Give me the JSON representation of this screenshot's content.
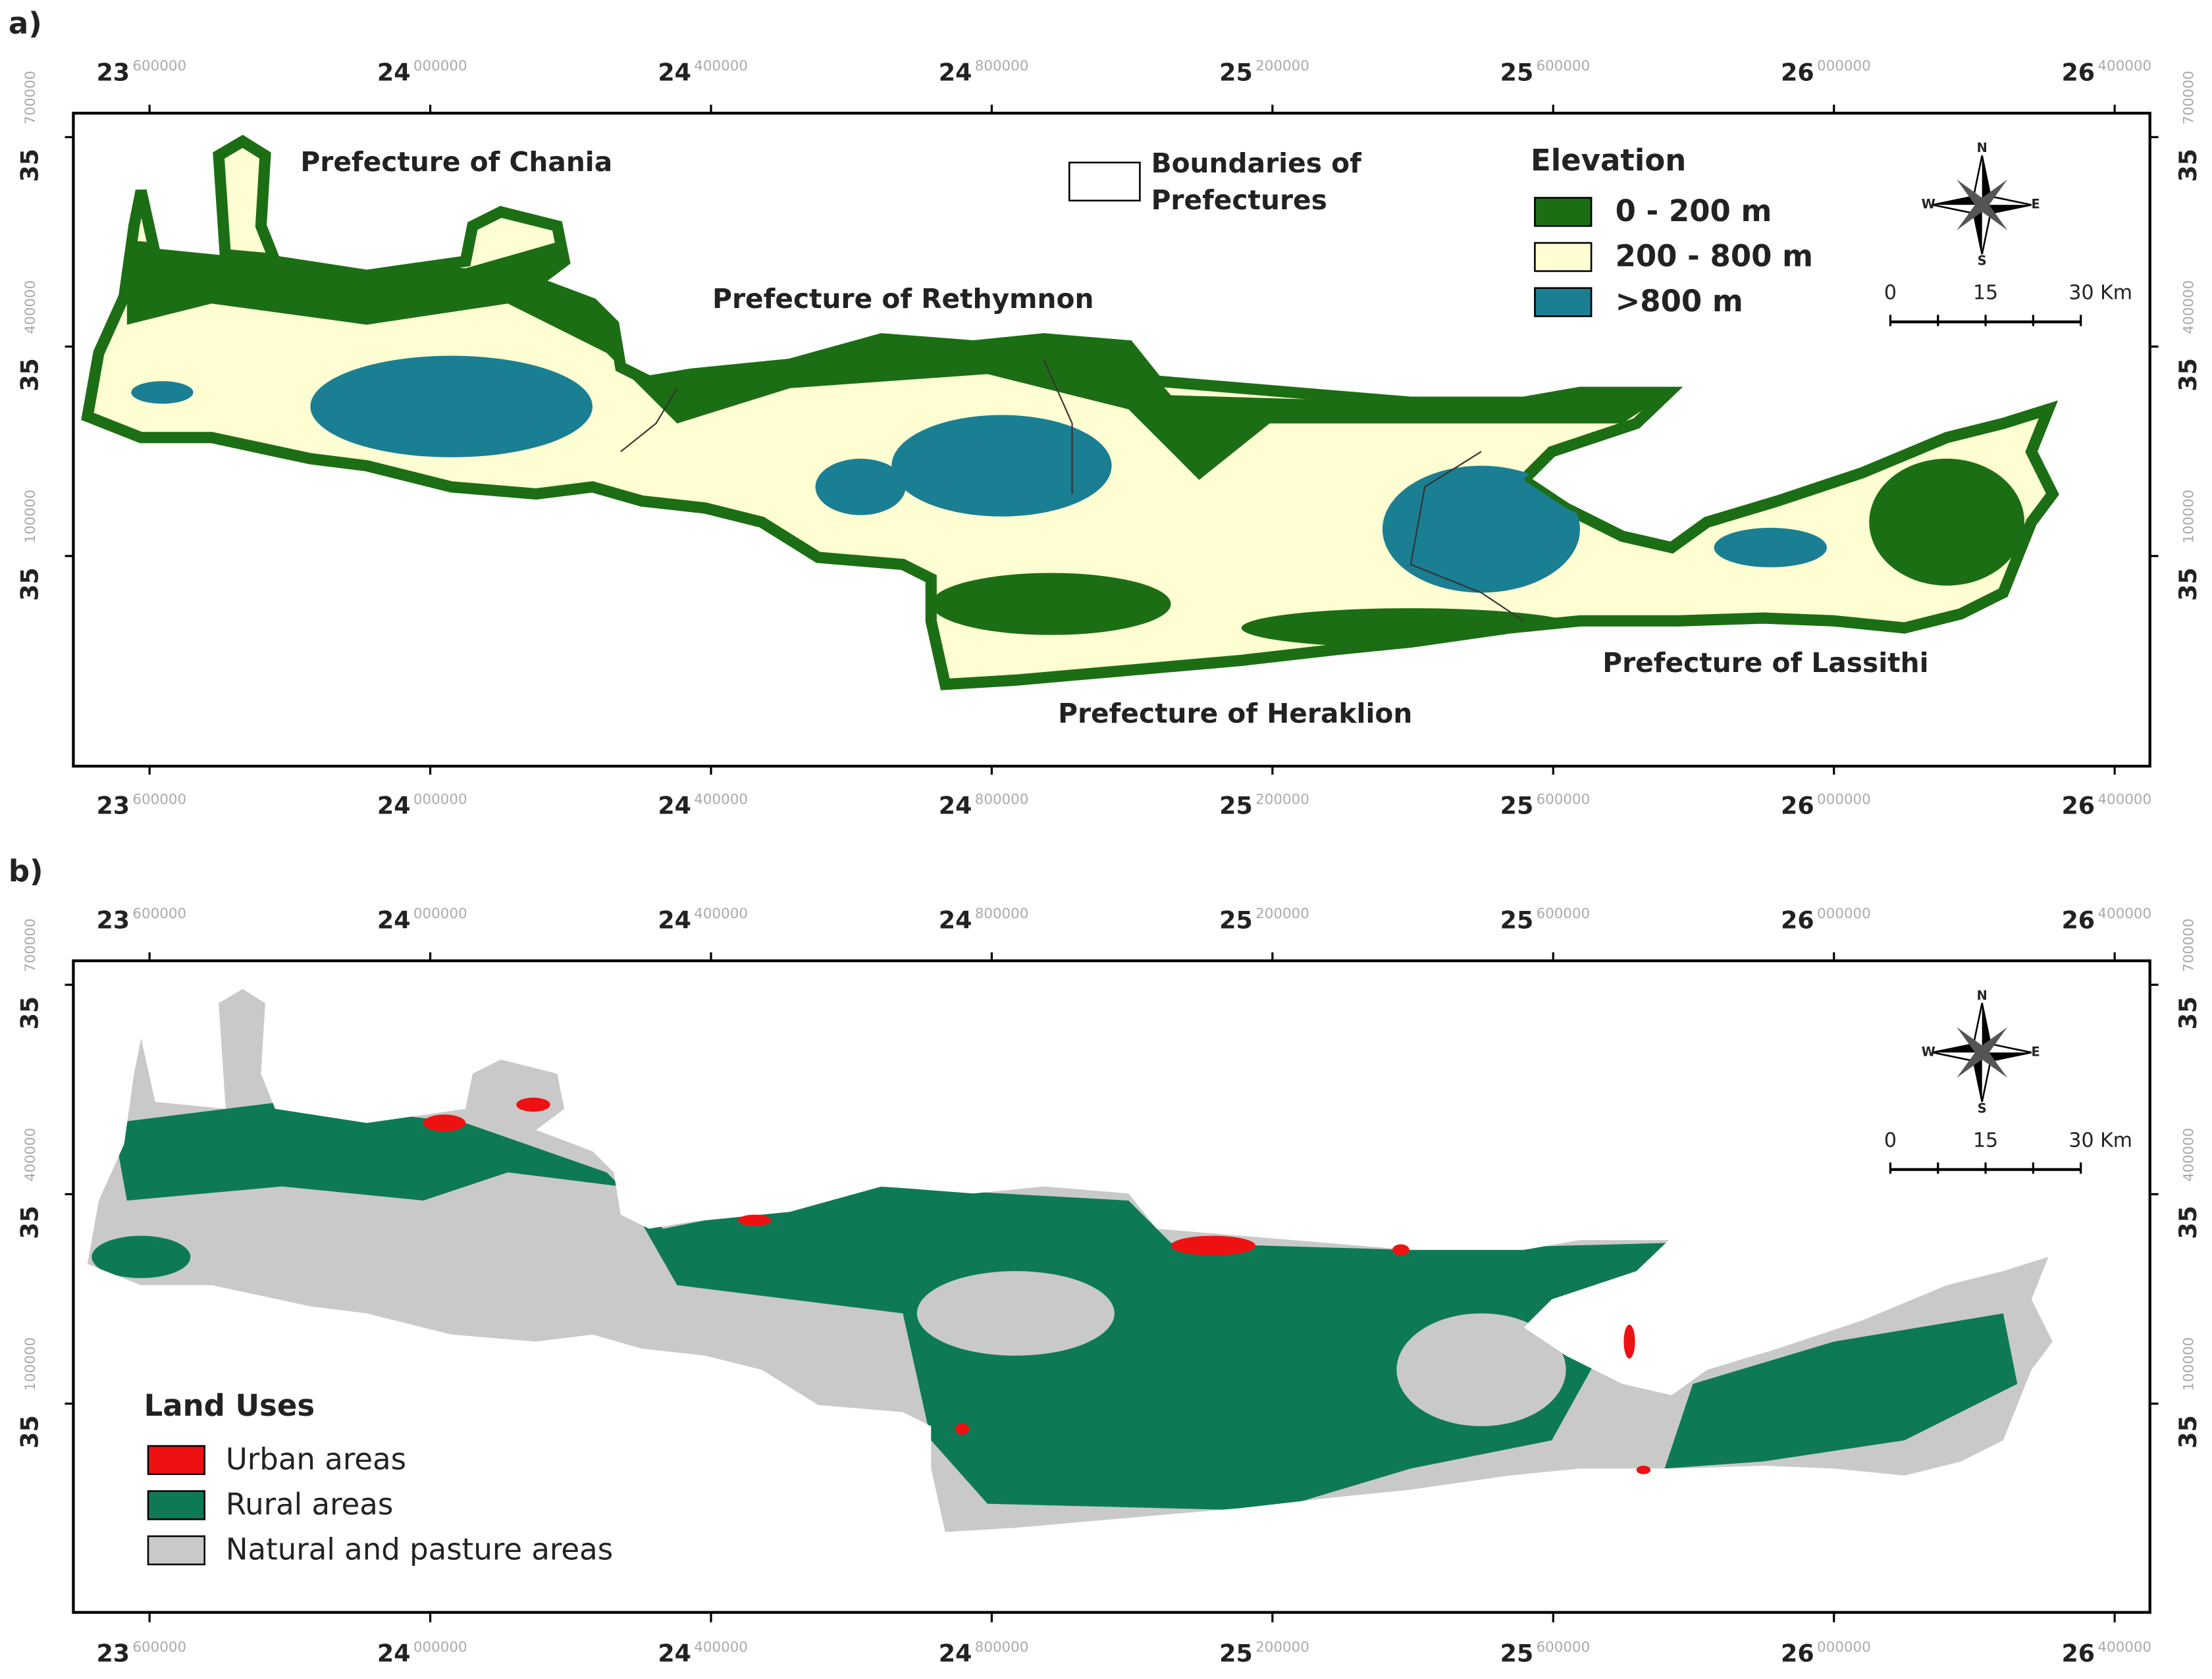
{
  "axes": {
    "x_ticks": [
      {
        "degree": "23",
        "minor": "600000"
      },
      {
        "degree": "24",
        "minor": "000000"
      },
      {
        "degree": "24",
        "minor": "400000"
      },
      {
        "degree": "24",
        "minor": "800000"
      },
      {
        "degree": "25",
        "minor": "200000"
      },
      {
        "degree": "25",
        "minor": "600000"
      },
      {
        "degree": "26",
        "minor": "000000"
      },
      {
        "degree": "26",
        "minor": "400000"
      }
    ],
    "y_ticks": [
      {
        "degree": "35",
        "minor": "700000"
      },
      {
        "degree": "35",
        "minor": "400000"
      },
      {
        "degree": "35",
        "minor": "100000"
      }
    ]
  },
  "panels": [
    {
      "label": "a)",
      "legend": {
        "title": "Elevation",
        "items": [
          {
            "label": "0 - 200 m",
            "color": "#1c6e14"
          },
          {
            "label": "200 - 800 m",
            "color": "#fffdd2"
          },
          {
            "label": ">800 m",
            "color": "#1a7f93"
          }
        ]
      },
      "boundary_legend": [
        "Boundaries of",
        "Prefectures"
      ],
      "region_labels": [
        "Prefecture of Chania",
        "Prefecture of Rethymnon",
        "Prefecture of Heraklion",
        "Prefecture of Lassithi"
      ],
      "compass": [
        "N",
        "S",
        "E",
        "W"
      ],
      "scale_bar": [
        "0",
        "15",
        "30 Km"
      ]
    },
    {
      "label": "b)",
      "legend": {
        "title": "Land Uses",
        "items": [
          {
            "label": "Urban areas",
            "color": "#ee1111"
          },
          {
            "label": "Rural areas",
            "color": "#0e7a55"
          },
          {
            "label": "Natural and pasture areas",
            "color": "#c9c9c9"
          }
        ]
      },
      "compass": [
        "N",
        "S",
        "E",
        "W"
      ],
      "scale_bar": [
        "0",
        "15",
        "30 Km"
      ]
    }
  ]
}
